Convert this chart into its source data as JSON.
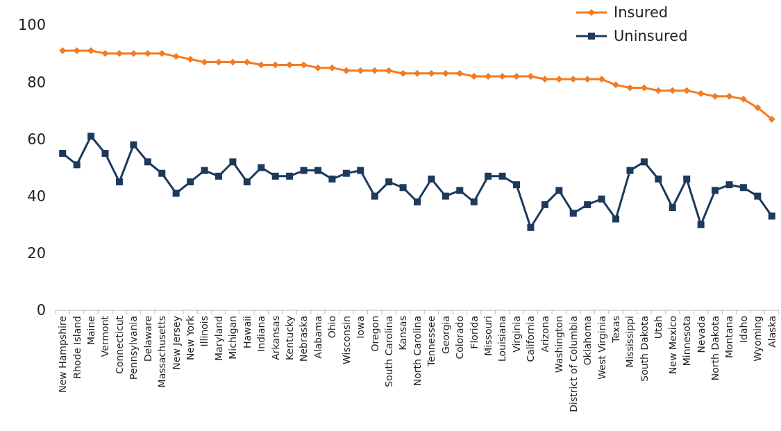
{
  "chart_data": {
    "type": "line",
    "categories": [
      "New Hampshire",
      "Rhode Island",
      "Maine",
      "Vermont",
      "Connecticut",
      "Pennsylvania",
      "Delaware",
      "Massachusetts",
      "New Jersey",
      "New York",
      "Illinois",
      "Maryland",
      "Michigan",
      "Hawaii",
      "Indiana",
      "Arkansas",
      "Kentucky",
      "Nebraska",
      "Alabama",
      "Ohio",
      "Wisconsin",
      "Iowa",
      "Oregon",
      "South Carolina",
      "Kansas",
      "North Carolina",
      "Tennessee",
      "Georgia",
      "Colorado",
      "Florida",
      "Missouri",
      "Louisiana",
      "Virginia",
      "California",
      "Arizona",
      "Washington",
      "District of Columbia",
      "Oklahoma",
      "West Virginia",
      "Texas",
      "Mississippi",
      "South Dakota",
      "Utah",
      "New Mexico",
      "Minnesota",
      "Nevada",
      "North Dakota",
      "Montana",
      "Idaho",
      "Wyoming",
      "Alaska"
    ],
    "series": [
      {
        "name": "Insured",
        "color": "#f47b20",
        "marker": "diamond",
        "values": [
          91,
          91,
          91,
          90,
          90,
          90,
          90,
          90,
          89,
          88,
          87,
          87,
          87,
          87,
          86,
          86,
          86,
          86,
          85,
          85,
          84,
          84,
          84,
          84,
          83,
          83,
          83,
          83,
          83,
          82,
          82,
          82,
          82,
          82,
          81,
          81,
          81,
          81,
          81,
          79,
          78,
          78,
          77,
          77,
          77,
          76,
          75,
          75,
          74,
          71,
          67
        ]
      },
      {
        "name": "Uninsured",
        "color": "#1b3a5c",
        "marker": "square",
        "values": [
          55,
          51,
          61,
          55,
          45,
          58,
          52,
          48,
          41,
          45,
          49,
          47,
          52,
          45,
          50,
          47,
          47,
          49,
          49,
          46,
          48,
          49,
          40,
          45,
          43,
          38,
          46,
          40,
          42,
          38,
          47,
          47,
          44,
          29,
          37,
          42,
          34,
          37,
          39,
          32,
          49,
          52,
          46,
          36,
          46,
          30,
          42,
          44,
          43,
          40,
          33
        ]
      }
    ],
    "ylim": [
      0,
      100
    ],
    "yticks": [
      0,
      20,
      40,
      60,
      80,
      100
    ],
    "legend": "top right",
    "grid": false,
    "line_style": "solid"
  }
}
